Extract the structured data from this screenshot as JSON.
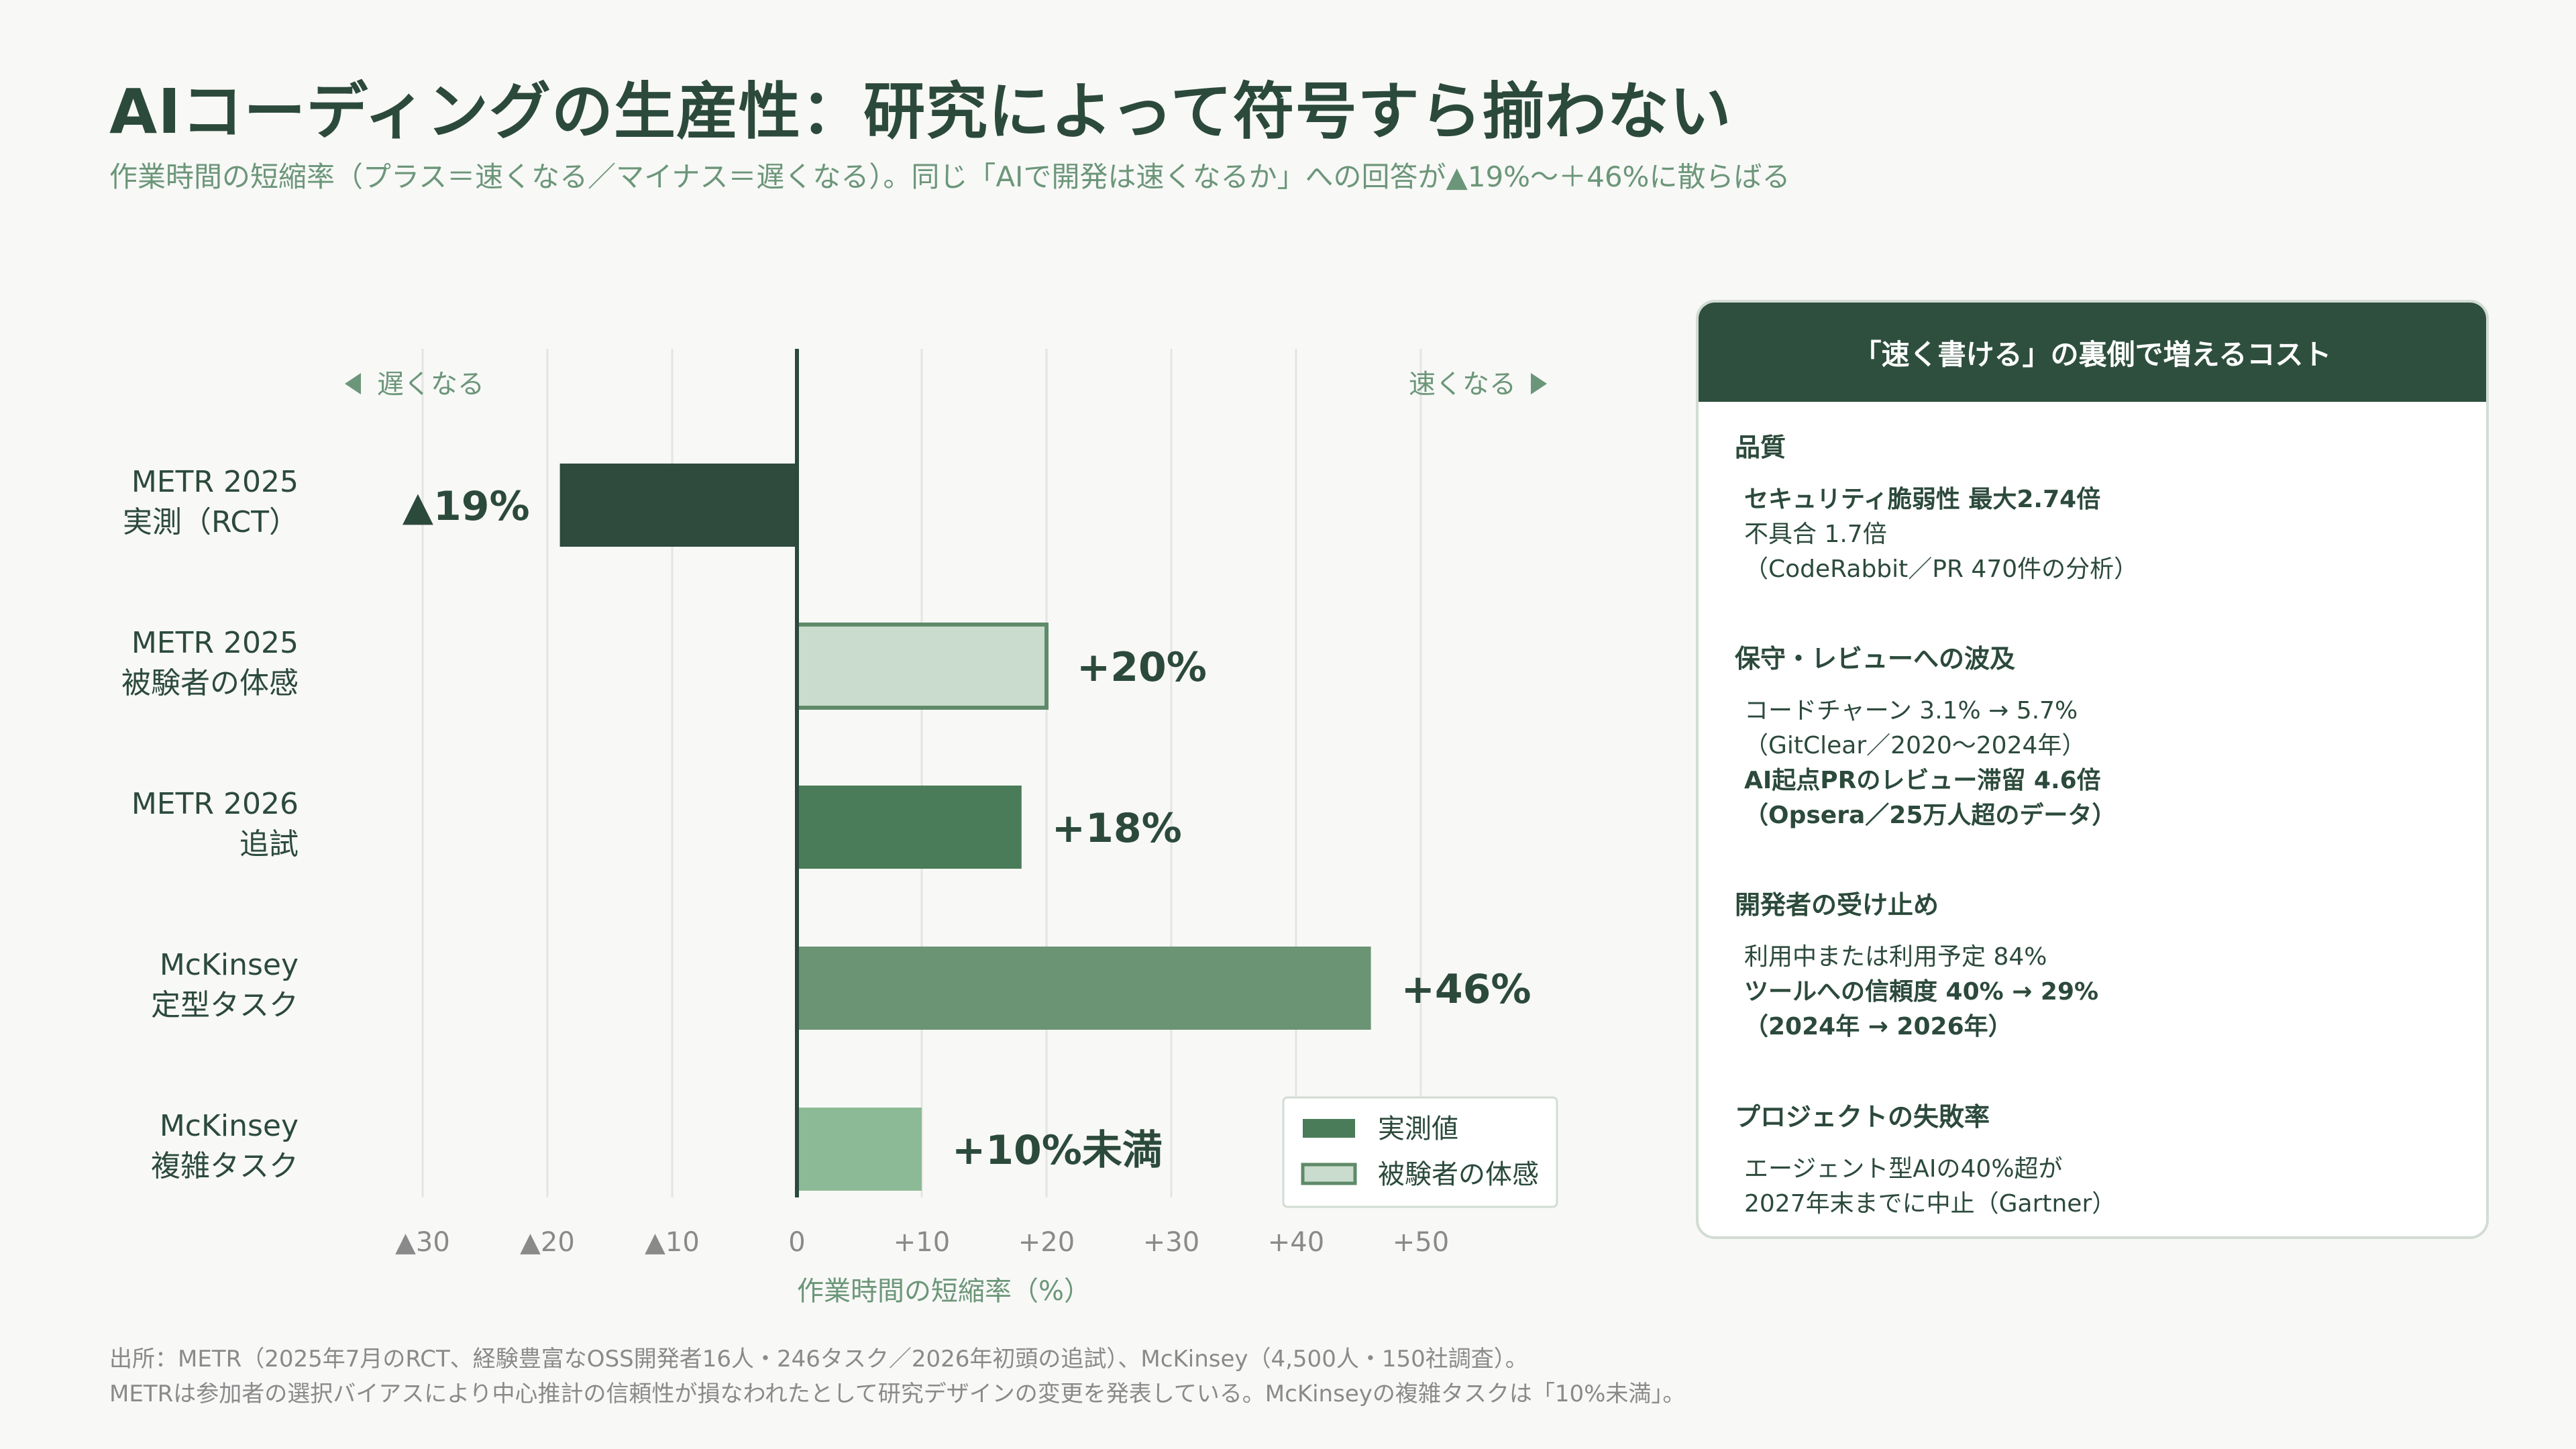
{
  "title": "AIコーディングの生産性：研究によって符号すら揃わない",
  "subtitle": "作業時間の短縮率（プラス＝速くなる／マイナス＝遅くなる）。同じ「AIで開発は速くなるか」への回答が▲19%〜＋46%に散らばる",
  "chart_data": {
    "type": "bar",
    "orientation": "horizontal",
    "categories": [
      [
        "METR 2025",
        "実測（RCT）"
      ],
      [
        "METR 2025",
        "被験者の体感"
      ],
      [
        "METR 2026",
        "追試"
      ],
      [
        "McKinsey",
        "定型タスク"
      ],
      [
        "McKinsey",
        "複雑タスク"
      ]
    ],
    "values": [
      -19,
      20,
      18,
      46,
      10
    ],
    "value_labels": [
      "▲19%",
      "+20%",
      "+18%",
      "+46%",
      "+10%未満"
    ],
    "bar_kinds": [
      "measured",
      "perceived",
      "measured",
      "measured",
      "measured"
    ],
    "bar_colors": [
      "#2e4b3d",
      "#c9dccd",
      "#4a7c59",
      "#6b9474",
      "#8dba96"
    ],
    "xlabel": "作業時間の短縮率（%）",
    "xlim": [
      -30,
      58
    ],
    "ticks": [
      {
        "v": -30,
        "label": "▲30"
      },
      {
        "v": -20,
        "label": "▲20"
      },
      {
        "v": -10,
        "label": "▲10"
      },
      {
        "v": 0,
        "label": "0"
      },
      {
        "v": 10,
        "label": "+10"
      },
      {
        "v": 20,
        "label": "+20"
      },
      {
        "v": 30,
        "label": "+30"
      },
      {
        "v": 40,
        "label": "+40"
      },
      {
        "v": 50,
        "label": "+50"
      }
    ],
    "direction_left": "遅くなる",
    "direction_right": "速くなる",
    "legend": [
      {
        "label": "実測値",
        "color": "#4a7c59",
        "kind": "measured"
      },
      {
        "label": "被験者の体感",
        "color": "#c9dccd",
        "kind": "perceived"
      }
    ],
    "legend_position": "bottom-right",
    "grid": true
  },
  "panel": {
    "header": "「速く書ける」の裏側で増えるコスト",
    "sections": [
      {
        "title": "品質",
        "lines": [
          {
            "text": "セキュリティ脆弱性 最大2.74倍",
            "bold": true
          },
          {
            "text": "不具合 1.7倍",
            "bold": false
          },
          {
            "text": "（CodeRabbit／PR 470件の分析）",
            "bold": false
          }
        ]
      },
      {
        "title": "保守・レビューへの波及",
        "lines": [
          {
            "text": "コードチャーン 3.1% → 5.7%",
            "bold": false
          },
          {
            "text": "（GitClear／2020〜2024年）",
            "bold": false
          },
          {
            "text": "AI起点PRのレビュー滞留 4.6倍",
            "bold": true
          },
          {
            "text": "（Opsera／25万人超のデータ）",
            "bold": true
          }
        ]
      },
      {
        "title": "開発者の受け止め",
        "lines": [
          {
            "text": "利用中または利用予定 84%",
            "bold": false
          },
          {
            "text": "ツールへの信頼度 40% → 29%",
            "bold": true
          },
          {
            "text": "（2024年 → 2026年）",
            "bold": true
          }
        ]
      },
      {
        "title": "プロジェクトの失敗率",
        "lines": [
          {
            "text": "エージェント型AIの40%超が",
            "bold": false
          },
          {
            "text": "2027年末までに中止（Gartner）",
            "bold": false
          }
        ]
      }
    ]
  },
  "footnotes": [
    "出所：METR（2025年7月のRCT、経験豊富なOSS開発者16人・246タスク／2026年初頭の追試）、McKinsey（4,500人・150社調査）。",
    "METRは参加者の選択バイアスにより中心推計の信頼性が損なわれたとして研究デザインの変更を発表している。McKinseyの複雑タスクは「10%未満」。"
  ],
  "colors": {
    "title": "#2c4a3c",
    "subtitle": "#6c9679",
    "axis": "#2c4a3c",
    "grid": "#e4e4e2",
    "tick": "#8a8a8a",
    "panel_header": "#2e4f3e"
  }
}
